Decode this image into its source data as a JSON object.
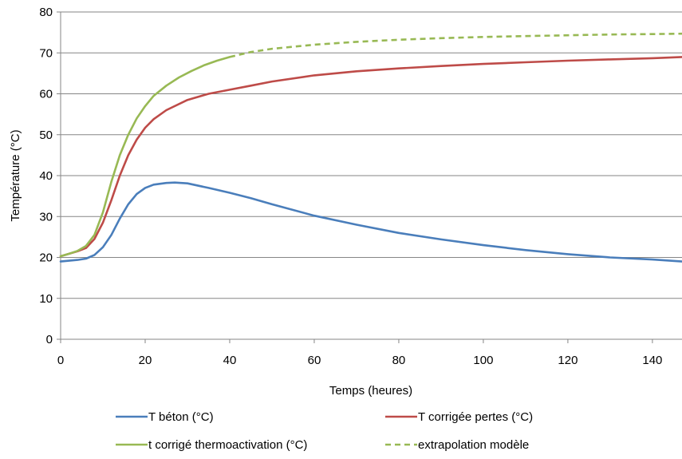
{
  "chart_data": {
    "type": "line",
    "xlabel": "Temps (heures)",
    "ylabel": "Température (°C)",
    "xlim": [
      0,
      147
    ],
    "ylim": [
      0,
      80
    ],
    "x_ticks": [
      0,
      20,
      40,
      60,
      80,
      100,
      120,
      140
    ],
    "y_ticks": [
      0,
      10,
      20,
      30,
      40,
      50,
      60,
      70,
      80
    ],
    "grid": "horizontal",
    "legend_position": "bottom",
    "series": [
      {
        "name": "T béton (°C)",
        "color": "#4a7ebb",
        "dash": "solid",
        "x": [
          0,
          2,
          4,
          6,
          8,
          10,
          12,
          14,
          16,
          18,
          20,
          22,
          25,
          27,
          30,
          35,
          40,
          45,
          50,
          60,
          70,
          80,
          90,
          100,
          110,
          120,
          130,
          140,
          147
        ],
        "y": [
          19,
          19.2,
          19.4,
          19.7,
          20.6,
          22.5,
          25.5,
          29.5,
          33,
          35.5,
          37,
          37.8,
          38.2,
          38.3,
          38.1,
          37,
          35.8,
          34.5,
          33,
          30.2,
          28,
          26,
          24.4,
          23,
          21.8,
          20.8,
          20,
          19.5,
          19
        ]
      },
      {
        "name": "T corrigée pertes (°C)",
        "color": "#be4b48",
        "dash": "solid",
        "x": [
          0,
          2,
          4,
          6,
          8,
          10,
          12,
          14,
          16,
          18,
          20,
          22,
          25,
          30,
          35,
          40,
          45,
          50,
          60,
          70,
          80,
          90,
          100,
          110,
          120,
          130,
          140,
          147
        ],
        "y": [
          20.3,
          20.9,
          21.5,
          22.3,
          24.5,
          28.5,
          34,
          40,
          45,
          48.8,
          51.7,
          53.8,
          56,
          58.5,
          60,
          61,
          62,
          63,
          64.5,
          65.5,
          66.2,
          66.8,
          67.3,
          67.7,
          68.1,
          68.4,
          68.7,
          69
        ]
      },
      {
        "name": "t corrigé thermoactivation (°C)",
        "color": "#98b954",
        "dash": "solid",
        "x": [
          0,
          2,
          4,
          6,
          8,
          10,
          12,
          14,
          16,
          18,
          20,
          22,
          25,
          28,
          31,
          34,
          37,
          40
        ],
        "y": [
          20.3,
          20.9,
          21.6,
          22.8,
          25.5,
          31,
          38.5,
          45,
          50,
          54,
          57,
          59.5,
          62,
          64,
          65.6,
          67,
          68.1,
          69
        ]
      },
      {
        "name": "extrapolation modèle",
        "color": "#98b954",
        "dash": "dashed",
        "x": [
          40,
          45,
          50,
          60,
          70,
          80,
          90,
          100,
          110,
          120,
          130,
          140,
          147
        ],
        "y": [
          69,
          70.2,
          71,
          72,
          72.7,
          73.2,
          73.6,
          73.9,
          74.1,
          74.3,
          74.5,
          74.6,
          74.7
        ]
      }
    ]
  }
}
